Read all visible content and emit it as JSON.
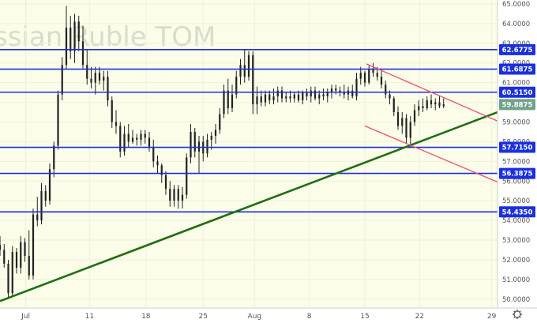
{
  "chart_data": {
    "type": "candlestick",
    "title": "Russian Ruble TOM",
    "watermark": "ssian Ruble TOM",
    "ylim": [
      49.55,
      65.2
    ],
    "xlim": [
      0,
      60
    ],
    "y_ticks": [
      "50.0000",
      "51.0000",
      "52.0000",
      "53.0000",
      "54.0000",
      "55.0000",
      "56.0000",
      "57.0000",
      "58.0000",
      "59.0000",
      "60.0000",
      "61.0000",
      "62.0000",
      "63.0000",
      "64.0000",
      "65.0000"
    ],
    "x_ticks": [
      {
        "label": "Jul",
        "x": 3.1
      },
      {
        "label": "11",
        "x": 10.8
      },
      {
        "label": "18",
        "x": 17.6
      },
      {
        "label": "25",
        "x": 24.5
      },
      {
        "label": "Aug",
        "x": 30.7
      },
      {
        "label": "8",
        "x": 37.3
      },
      {
        "label": "15",
        "x": 44.0
      },
      {
        "label": "22",
        "x": 50.6
      },
      {
        "label": "29",
        "x": 59.3
      }
    ],
    "horizontal_levels": [
      {
        "label": "62.6775",
        "value": 62.6775
      },
      {
        "label": "61.6875",
        "value": 61.6875
      },
      {
        "label": "60.5150",
        "value": 60.515
      },
      {
        "label": "57.7150",
        "value": 57.715
      },
      {
        "label": "56.3875",
        "value": 56.3875
      },
      {
        "label": "54.4350",
        "value": 54.435
      }
    ],
    "last_price": {
      "label": "59.8875",
      "value": 59.8875
    },
    "trend_lines": [
      {
        "name": "support",
        "color": "#1f6e12",
        "points": [
          [
            0,
            49.9
          ],
          [
            60,
            59.5
          ]
        ]
      },
      {
        "name": "channel-upper",
        "color": "#f0506e",
        "points": [
          [
            44.2,
            61.95
          ],
          [
            60,
            59.05
          ]
        ]
      },
      {
        "name": "channel-lower",
        "color": "#f0506e",
        "points": [
          [
            44.0,
            58.8
          ],
          [
            60,
            55.95
          ]
        ]
      }
    ],
    "candles": [
      [
        0,
        52.75,
        53.2,
        52.2,
        52.5
      ],
      [
        0.5,
        52.5,
        52.8,
        51.6,
        51.8
      ],
      [
        1,
        51.8,
        52.0,
        50.1,
        50.3
      ],
      [
        1.5,
        50.3,
        52.7,
        50.1,
        52.4
      ],
      [
        2,
        52.4,
        52.6,
        51.3,
        51.6
      ],
      [
        2.5,
        51.6,
        53.2,
        51.3,
        52.9
      ],
      [
        3,
        52.9,
        53.1,
        51.9,
        52.2
      ],
      [
        3.5,
        52.2,
        53.5,
        51.0,
        51.2
      ],
      [
        4,
        51.2,
        54.6,
        51.0,
        54.3
      ],
      [
        4.5,
        54.3,
        55.2,
        53.7,
        54.0
      ],
      [
        5,
        54.0,
        55.9,
        53.8,
        55.5
      ],
      [
        5.5,
        55.5,
        55.8,
        54.7,
        55.0
      ],
      [
        6,
        55.0,
        56.9,
        54.8,
        56.6
      ],
      [
        6.5,
        56.6,
        58.0,
        56.2,
        57.8
      ],
      [
        7,
        57.8,
        60.6,
        57.6,
        60.4
      ],
      [
        7.5,
        60.4,
        62.3,
        60.1,
        61.9
      ],
      [
        8,
        61.9,
        64.9,
        61.7,
        63.8
      ],
      [
        8.5,
        63.8,
        64.4,
        62.2,
        62.6
      ],
      [
        9,
        62.6,
        64.5,
        62.0,
        64.1
      ],
      [
        9.5,
        64.1,
        64.4,
        62.6,
        63.1
      ],
      [
        10,
        63.1,
        63.9,
        61.7,
        61.9
      ],
      [
        10.5,
        61.9,
        62.7,
        60.9,
        61.2
      ],
      [
        11,
        61.2,
        61.8,
        60.7,
        61.0
      ],
      [
        11.5,
        61.0,
        61.8,
        60.4,
        61.5
      ],
      [
        12,
        61.5,
        61.8,
        60.9,
        61.1
      ],
      [
        12.5,
        61.1,
        61.6,
        60.6,
        61.3
      ],
      [
        13,
        61.3,
        61.6,
        59.8,
        60.1
      ],
      [
        13.5,
        60.1,
        60.3,
        58.7,
        59.0
      ],
      [
        14,
        59.0,
        59.6,
        58.4,
        58.8
      ],
      [
        14.5,
        58.8,
        59.0,
        57.2,
        57.5
      ],
      [
        15,
        57.5,
        58.8,
        57.3,
        58.4
      ],
      [
        15.5,
        58.4,
        58.9,
        57.7,
        58.0
      ],
      [
        16,
        58.0,
        58.6,
        57.9,
        58.2
      ],
      [
        16.5,
        58.2,
        58.4,
        57.8,
        58.1
      ],
      [
        17,
        58.1,
        58.6,
        57.8,
        58.4
      ],
      [
        17.5,
        58.4,
        58.6,
        57.9,
        58.2
      ],
      [
        18,
        58.2,
        58.5,
        57.5,
        57.7
      ],
      [
        18.5,
        57.7,
        58.1,
        56.7,
        57.0
      ],
      [
        19,
        57.0,
        57.3,
        56.4,
        56.8
      ],
      [
        19.5,
        56.8,
        56.9,
        55.9,
        56.3
      ],
      [
        20,
        56.3,
        56.5,
        55.3,
        55.6
      ],
      [
        20.5,
        55.6,
        56.0,
        54.7,
        55.0
      ],
      [
        21,
        55.0,
        55.8,
        54.7,
        55.6
      ],
      [
        21.5,
        55.6,
        55.8,
        54.6,
        55.0
      ],
      [
        22,
        55.0,
        55.7,
        54.6,
        55.3
      ],
      [
        22.5,
        55.3,
        57.4,
        55.1,
        57.2
      ],
      [
        23,
        57.2,
        58.9,
        56.9,
        58.5
      ],
      [
        23.5,
        58.5,
        58.7,
        57.2,
        57.5
      ],
      [
        24,
        57.5,
        58.3,
        56.4,
        58.0
      ],
      [
        24.5,
        58.0,
        58.3,
        57.0,
        57.4
      ],
      [
        25,
        57.4,
        58.4,
        57.2,
        58.1
      ],
      [
        25.5,
        58.1,
        58.5,
        57.6,
        58.3
      ],
      [
        26,
        58.3,
        58.9,
        57.9,
        58.6
      ],
      [
        26.5,
        58.6,
        59.7,
        58.4,
        59.4
      ],
      [
        27,
        59.4,
        60.9,
        59.2,
        60.6
      ],
      [
        27.5,
        60.6,
        61.2,
        59.4,
        59.7
      ],
      [
        28,
        59.7,
        60.9,
        59.5,
        60.4
      ],
      [
        28.5,
        60.4,
        61.6,
        60.2,
        61.3
      ],
      [
        29,
        61.3,
        62.2,
        60.9,
        61.9
      ],
      [
        29.5,
        61.9,
        62.7,
        61.0,
        61.3
      ],
      [
        30,
        61.3,
        62.6,
        61.1,
        62.4
      ],
      [
        30.5,
        62.4,
        62.6,
        59.4,
        59.9
      ],
      [
        31,
        59.9,
        60.8,
        59.4,
        60.3
      ],
      [
        31.5,
        60.3,
        60.6,
        59.8,
        60.0
      ],
      [
        32,
        60.0,
        60.6,
        59.8,
        60.4
      ],
      [
        32.5,
        60.4,
        60.6,
        59.9,
        60.1
      ],
      [
        33,
        60.1,
        60.7,
        59.9,
        60.3
      ],
      [
        33.5,
        60.3,
        60.8,
        60.0,
        60.6
      ],
      [
        34,
        60.6,
        60.8,
        60.0,
        60.2
      ],
      [
        34.5,
        60.2,
        60.5,
        60.0,
        60.3
      ],
      [
        35,
        60.3,
        60.6,
        60.0,
        60.2
      ],
      [
        35.5,
        60.2,
        60.5,
        60.0,
        60.4
      ],
      [
        36,
        60.4,
        60.6,
        60.0,
        60.1
      ],
      [
        36.5,
        60.1,
        60.6,
        59.9,
        60.5
      ],
      [
        37,
        60.5,
        60.7,
        60.1,
        60.3
      ],
      [
        37.5,
        60.3,
        60.8,
        60.0,
        60.6
      ],
      [
        38,
        60.6,
        60.8,
        60.1,
        60.2
      ],
      [
        38.5,
        60.2,
        60.6,
        59.9,
        60.4
      ],
      [
        39,
        60.4,
        60.7,
        60.1,
        60.3
      ],
      [
        39.5,
        60.3,
        60.7,
        60.0,
        60.5
      ],
      [
        40,
        60.5,
        60.9,
        60.2,
        60.7
      ],
      [
        40.5,
        60.7,
        60.9,
        60.4,
        60.6
      ],
      [
        41,
        60.6,
        60.8,
        60.3,
        60.5
      ],
      [
        41.5,
        60.5,
        60.9,
        60.2,
        60.4
      ],
      [
        42,
        60.4,
        60.8,
        60.1,
        60.6
      ],
      [
        42.5,
        60.6,
        60.9,
        60.2,
        60.3
      ],
      [
        43,
        60.3,
        61.5,
        60.1,
        61.2
      ],
      [
        43.5,
        61.2,
        61.8,
        60.9,
        61.5
      ],
      [
        44,
        61.5,
        61.6,
        60.8,
        61.0
      ],
      [
        44.5,
        61.0,
        61.9,
        60.9,
        61.7
      ],
      [
        45,
        61.7,
        62.0,
        61.3,
        61.5
      ],
      [
        45.5,
        61.5,
        61.8,
        61.1,
        61.3
      ],
      [
        46,
        61.3,
        61.6,
        60.7,
        60.9
      ],
      [
        46.5,
        60.9,
        61.1,
        60.2,
        60.4
      ],
      [
        47,
        60.4,
        60.6,
        59.9,
        60.2
      ],
      [
        47.5,
        60.2,
        60.3,
        59.3,
        59.5
      ],
      [
        48,
        59.5,
        59.8,
        58.6,
        58.8
      ],
      [
        48.5,
        58.8,
        59.5,
        58.4,
        59.2
      ],
      [
        49,
        59.2,
        59.4,
        57.9,
        58.2
      ],
      [
        49.5,
        58.2,
        59.3,
        57.7,
        59.0
      ],
      [
        50,
        59.0,
        59.9,
        58.8,
        59.6
      ],
      [
        50.5,
        59.6,
        60.1,
        59.3,
        59.8
      ],
      [
        51,
        59.8,
        60.2,
        59.5,
        59.7
      ],
      [
        51.5,
        59.7,
        60.3,
        59.6,
        60.1
      ],
      [
        52,
        60.1,
        60.4,
        59.7,
        59.9
      ],
      [
        52.5,
        59.9,
        60.2,
        59.6,
        60.0
      ],
      [
        53,
        60.0,
        60.3,
        59.7,
        59.8
      ],
      [
        53.5,
        59.8,
        60.2,
        59.7,
        59.9
      ]
    ]
  },
  "colors": {
    "background": "#fbfde9",
    "axis_bg": "#ffffff",
    "level_line": "#1b2fe0",
    "level_label_bg": "#1b2fe0",
    "last_price_bg": "#6fa38a",
    "support": "#1f6e12",
    "channel": "#f0506e",
    "candle": "#222222",
    "grid": "#eef0dd"
  },
  "icons": {
    "settings": "gear-icon"
  }
}
